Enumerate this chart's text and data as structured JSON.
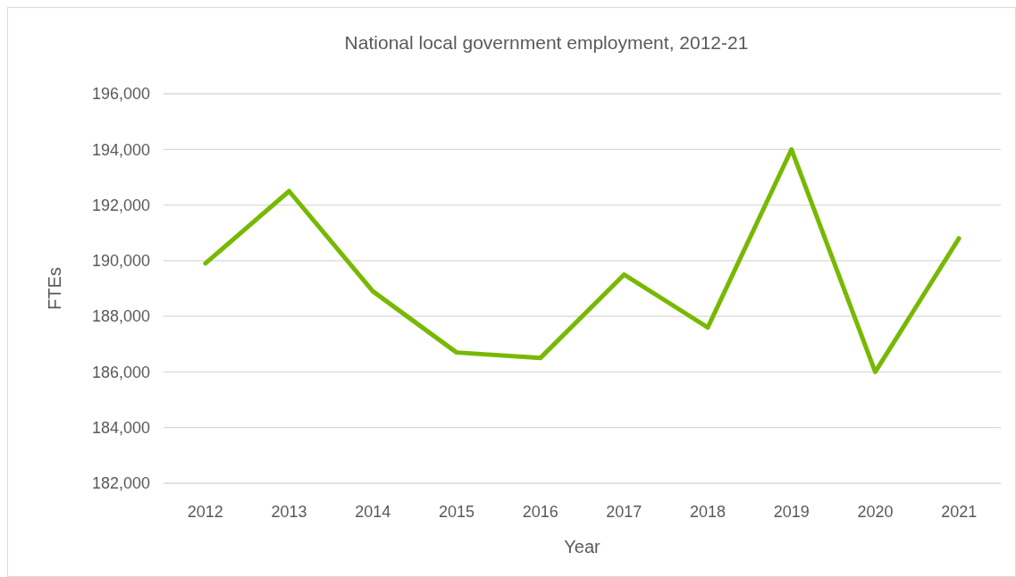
{
  "chart_data": {
    "type": "line",
    "title": "National local government employment, 2012-21",
    "xlabel": "Year",
    "ylabel": "FTEs",
    "categories": [
      "2012",
      "2013",
      "2014",
      "2015",
      "2016",
      "2017",
      "2018",
      "2019",
      "2020",
      "2021"
    ],
    "series": [
      {
        "color": "#77b900",
        "values": [
          189900,
          192500,
          188900,
          186700,
          186500,
          189500,
          187600,
          194000,
          186000,
          190800
        ]
      }
    ],
    "ylim": [
      182000,
      196000
    ],
    "yticks": [
      {
        "value": 182000,
        "label": "182,000"
      },
      {
        "value": 184000,
        "label": "184,000"
      },
      {
        "value": 186000,
        "label": "186,000"
      },
      {
        "value": 188000,
        "label": "188,000"
      },
      {
        "value": 190000,
        "label": "190,000"
      },
      {
        "value": 192000,
        "label": "192,000"
      },
      {
        "value": 194000,
        "label": "194,000"
      },
      {
        "value": 196000,
        "label": "196,000"
      }
    ],
    "grid": "y",
    "marker": "none",
    "line_style": "solid"
  }
}
